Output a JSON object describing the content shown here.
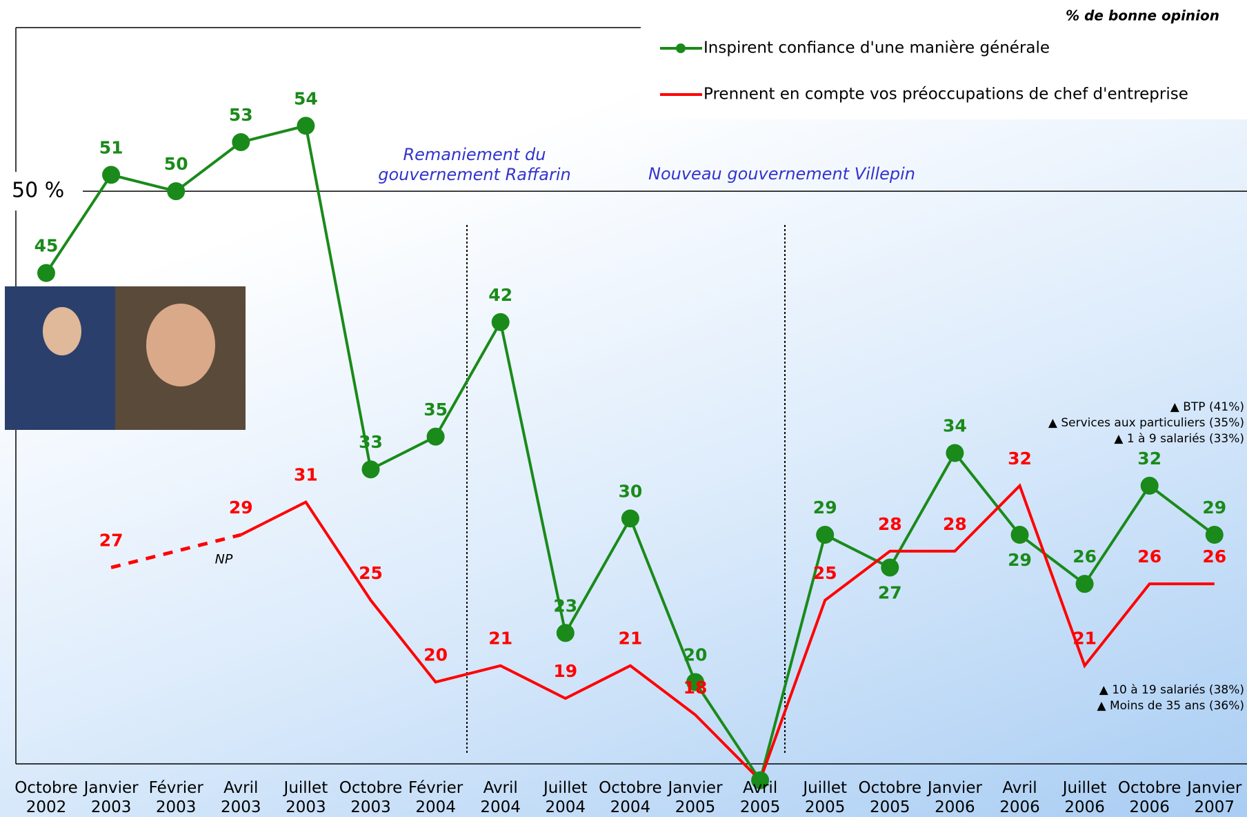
{
  "chart_data": {
    "type": "line",
    "unit_note": "% de bonne opinion",
    "categories": [
      "Octobre 2002",
      "Janvier 2003",
      "Février 2003",
      "Avril 2003",
      "Juillet 2003",
      "Octobre 2003",
      "Février 2004",
      "Avril 2004",
      "Juillet 2004",
      "Octobre 2004",
      "Janvier 2005",
      "Avril 2005",
      "Juillet 2005",
      "Octobre 2005",
      "Janvier 2006",
      "Avril 2006",
      "Juillet 2006",
      "Octobre 2006",
      "Janvier 2007"
    ],
    "series": [
      {
        "name": "Inspirent confiance d'une manière générale",
        "color": "#1a8a1a",
        "markers": true,
        "values": [
          45,
          51,
          50,
          53,
          54,
          33,
          35,
          42,
          23,
          30,
          20,
          14,
          29,
          27,
          34,
          29,
          26,
          32,
          29
        ]
      },
      {
        "name": "Prennent en compte vos préoccupations de chef d'entreprise",
        "color": "#ff0000",
        "markers": false,
        "values": [
          null,
          27,
          null,
          29,
          31,
          25,
          20,
          21,
          19,
          21,
          18,
          14,
          25,
          28,
          28,
          32,
          21,
          26,
          26
        ]
      }
    ],
    "gap_label": "NP",
    "ylim": [
      15,
      60
    ],
    "reference_line": {
      "value": 50,
      "label": "50 %"
    },
    "annotations": [
      "Remaniement du gouvernement Raffarin",
      "Nouveau gouvernement Villepin"
    ],
    "notes_top": [
      "▲ BTP (41%)",
      "▲ Services aux particuliers (35%)",
      "▲ 1 à 9 salariés (33%)"
    ],
    "notes_bottom": [
      "▲ 10 à 19 salariés (38%)",
      "▲ Moins de 35 ans (36%)"
    ]
  }
}
